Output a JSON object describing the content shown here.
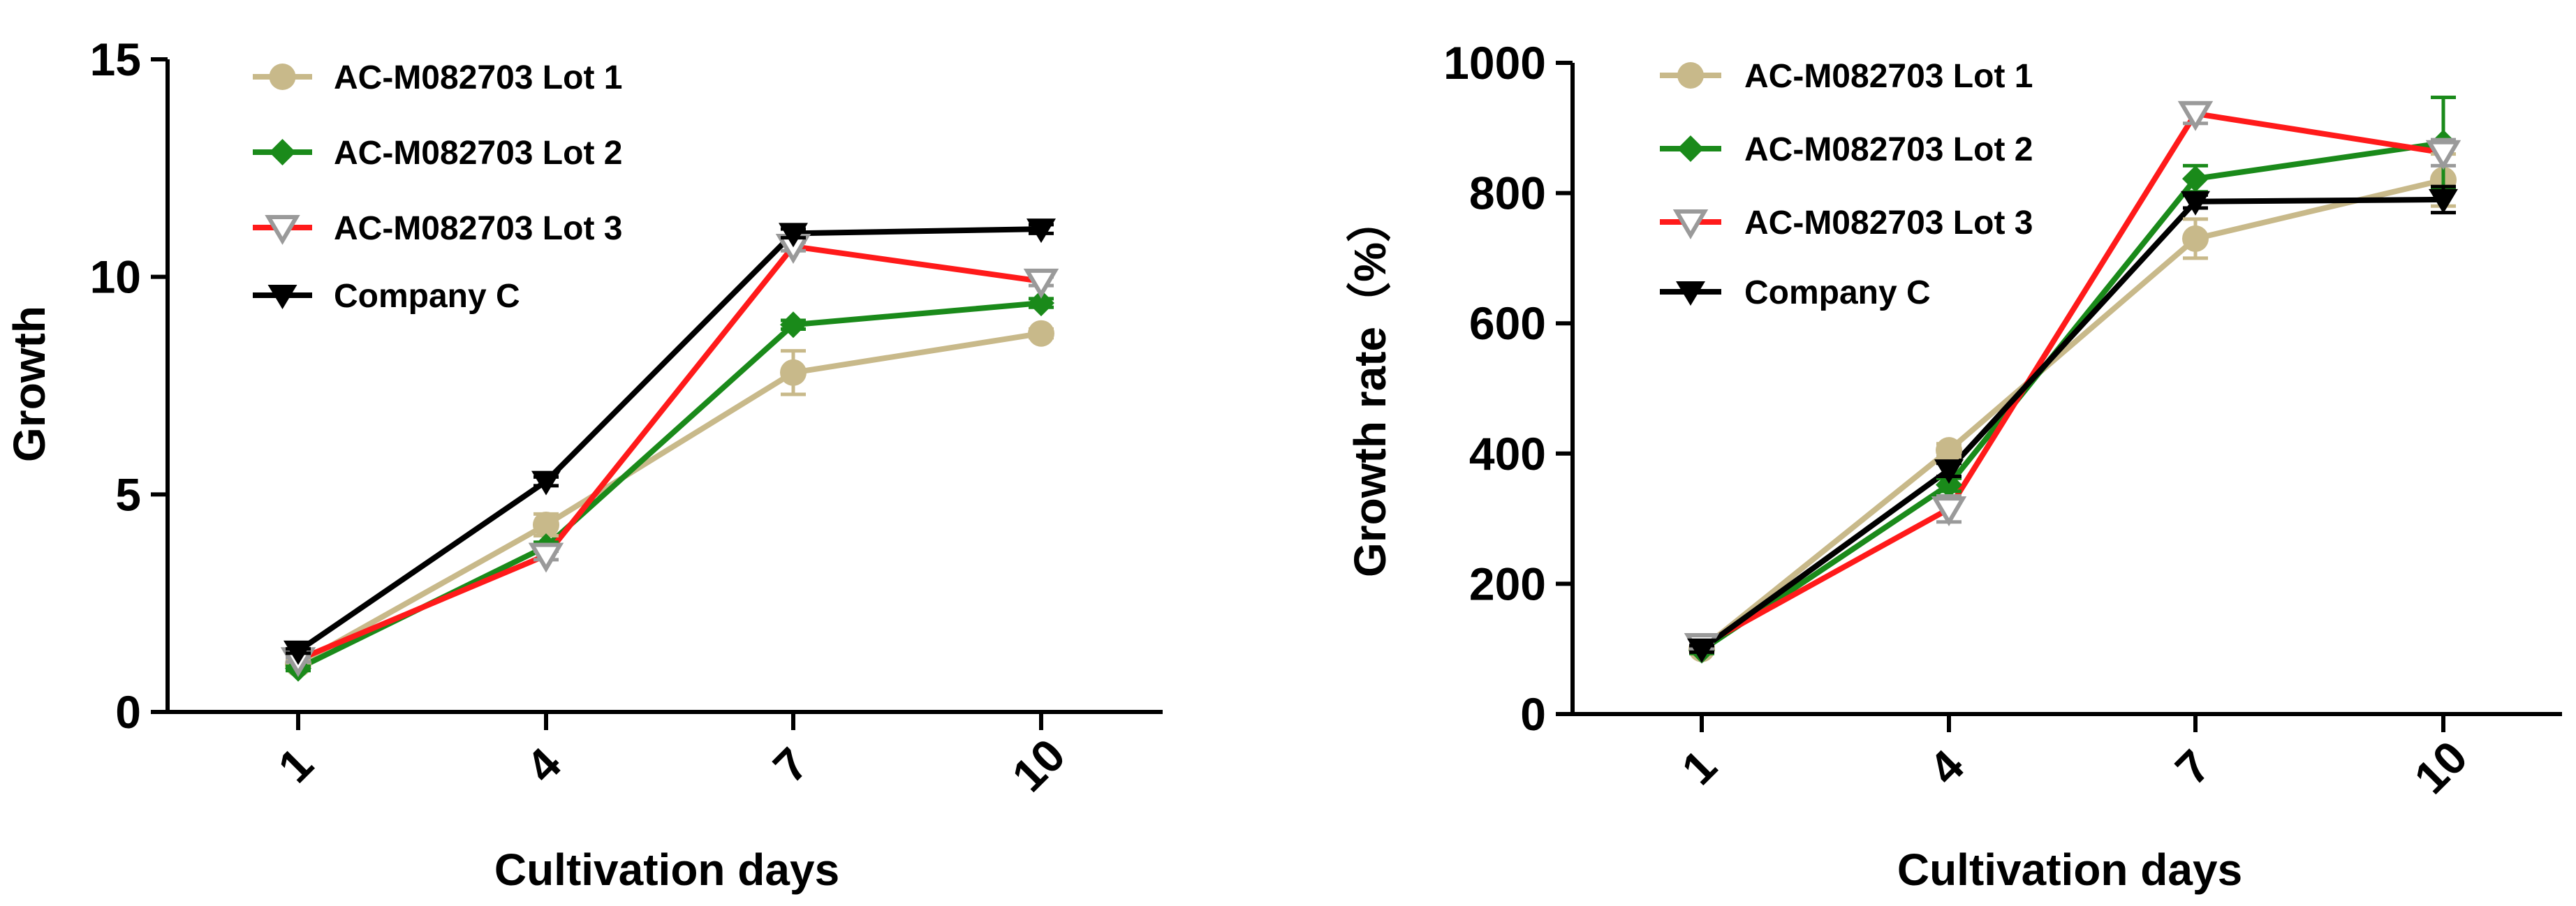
{
  "chart_data": [
    {
      "type": "line",
      "title": "",
      "xlabel": "Cultivation days",
      "ylabel": "Growth",
      "x": [
        1,
        4,
        7,
        10
      ],
      "ylim": [
        0,
        15
      ],
      "yticks": [
        0,
        5,
        10,
        15
      ],
      "xtick_labels": [
        "1",
        "4",
        "7",
        "10"
      ],
      "ytick_labels": [
        "0",
        "5",
        "10",
        "15"
      ],
      "grid": false,
      "legend_position": "top-left",
      "series": [
        {
          "name": "AC-M082703 Lot 1",
          "color": "#c8b98a",
          "marker": "circle",
          "values": [
            1.1,
            4.3,
            7.8,
            8.7
          ],
          "errors": [
            0.1,
            0.25,
            0.5,
            0.1
          ]
        },
        {
          "name": "AC-M082703 Lot 2",
          "color": "#1a8a1a",
          "marker": "diamond",
          "values": [
            1.0,
            3.8,
            8.9,
            9.4
          ],
          "errors": [
            0.05,
            0.1,
            0.1,
            0.1
          ]
        },
        {
          "name": "AC-M082703 Lot 3",
          "color": "#ff1a1a",
          "marker": "triangle-down-open",
          "values": [
            1.2,
            3.6,
            10.7,
            9.9
          ],
          "errors": [
            0.05,
            0.1,
            0.1,
            0.1
          ]
        },
        {
          "name": "Company C",
          "color": "#000000",
          "marker": "triangle-down",
          "values": [
            1.4,
            5.3,
            11.0,
            11.1
          ],
          "errors": [
            0.05,
            0.1,
            0.1,
            0.1
          ]
        }
      ]
    },
    {
      "type": "line",
      "title": "",
      "xlabel": "Cultivation days",
      "ylabel": "Growth rate（%）",
      "x": [
        1,
        4,
        7,
        10
      ],
      "ylim": [
        0,
        1000
      ],
      "yticks": [
        0,
        200,
        400,
        600,
        800,
        1000
      ],
      "xtick_labels": [
        "1",
        "4",
        "7",
        "10"
      ],
      "ytick_labels": [
        "0",
        "200",
        "400",
        "600",
        "800",
        "1000"
      ],
      "grid": false,
      "legend_position": "top-left",
      "series": [
        {
          "name": "AC-M082703 Lot 1",
          "color": "#c8b98a",
          "marker": "circle",
          "values": [
            100,
            405,
            730,
            820
          ],
          "errors": [
            5,
            10,
            30,
            40
          ]
        },
        {
          "name": "AC-M082703 Lot 2",
          "color": "#1a8a1a",
          "marker": "diamond",
          "values": [
            98,
            352,
            822,
            877
          ],
          "errors": [
            5,
            10,
            20,
            70
          ]
        },
        {
          "name": "AC-M082703 Lot 3",
          "color": "#ff1a1a",
          "marker": "triangle-down-open",
          "values": [
            105,
            315,
            922,
            862
          ],
          "errors": [
            5,
            20,
            15,
            20
          ]
        },
        {
          "name": "Company C",
          "color": "#000000",
          "marker": "triangle-down",
          "values": [
            100,
            375,
            787,
            790
          ],
          "errors": [
            5,
            10,
            10,
            20
          ]
        }
      ]
    }
  ]
}
